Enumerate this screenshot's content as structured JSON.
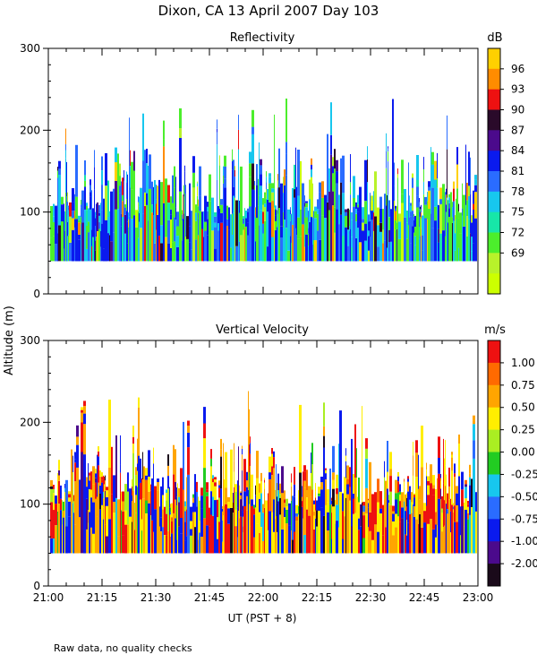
{
  "page": {
    "title": "Dixon, CA 13 April 2007  Day 103",
    "footnote": "Raw data, no quality checks",
    "shared_ylabel": "Altitude (m)",
    "xlabel": "UT  (PST + 8)"
  },
  "chart_data": [
    {
      "type": "heatmap",
      "title": "Reflectivity",
      "xlabel": "UT  (PST + 8)",
      "ylabel": "Altitude (m)",
      "x_tick_labels": [
        "21:00",
        "21:15",
        "21:30",
        "21:45",
        "22:00",
        "22:15",
        "22:30",
        "22:45",
        "23:00"
      ],
      "x_range_hours": [
        21.0,
        23.0
      ],
      "ylim": [
        0,
        300
      ],
      "y_ticks": [
        0,
        100,
        200,
        300
      ],
      "data_floor_m": 40,
      "colorbar": {
        "unit": "dB",
        "tick_labels": [
          "96",
          "93",
          "90",
          "87",
          "84",
          "81",
          "78",
          "75",
          "72",
          "69"
        ],
        "colors": [
          "#ffd000",
          "#ff8c00",
          "#ee1111",
          "#2a0a2a",
          "#4b0a8c",
          "#0a1aee",
          "#2a6cff",
          "#17c7ee",
          "#17e6a8",
          "#4cee2c",
          "#b8f22a",
          "#ccff00"
        ]
      },
      "echo_profile": {
        "typical_top_m": [
          95,
          140
        ],
        "peak_tops_m": [
          180,
          220,
          240
        ],
        "dominant_colors": [
          "#17c7ee",
          "#0a1aee",
          "#4cee2c",
          "#2a6cff"
        ]
      }
    },
    {
      "type": "heatmap",
      "title": "Vertical Velocity",
      "xlabel": "UT  (PST + 8)",
      "ylabel": "Altitude (m)",
      "x_tick_labels": [
        "21:00",
        "21:15",
        "21:30",
        "21:45",
        "22:00",
        "22:15",
        "22:30",
        "22:45",
        "23:00"
      ],
      "x_range_hours": [
        21.0,
        23.0
      ],
      "ylim": [
        0,
        300
      ],
      "y_ticks": [
        0,
        100,
        200,
        300
      ],
      "data_floor_m": 40,
      "colorbar": {
        "unit": "m/s",
        "tick_labels": [
          "1.00",
          "0.75",
          "0.50",
          "0.25",
          "0.00",
          "-0.25",
          "-0.50",
          "-0.75",
          "-1.00",
          "-2.00"
        ],
        "colors": [
          "#ee1111",
          "#ff6a00",
          "#ffa500",
          "#ffee00",
          "#aaee22",
          "#22cc22",
          "#17c7ee",
          "#2a6cff",
          "#0a1aee",
          "#4b0a8c",
          "#1a0a1a"
        ]
      },
      "echo_profile": {
        "typical_top_m": [
          95,
          140
        ],
        "peak_tops_m": [
          180,
          220,
          240
        ],
        "dominant_colors": [
          "#ee1111",
          "#ffee00",
          "#ffa500",
          "#0a1aee"
        ]
      }
    }
  ]
}
